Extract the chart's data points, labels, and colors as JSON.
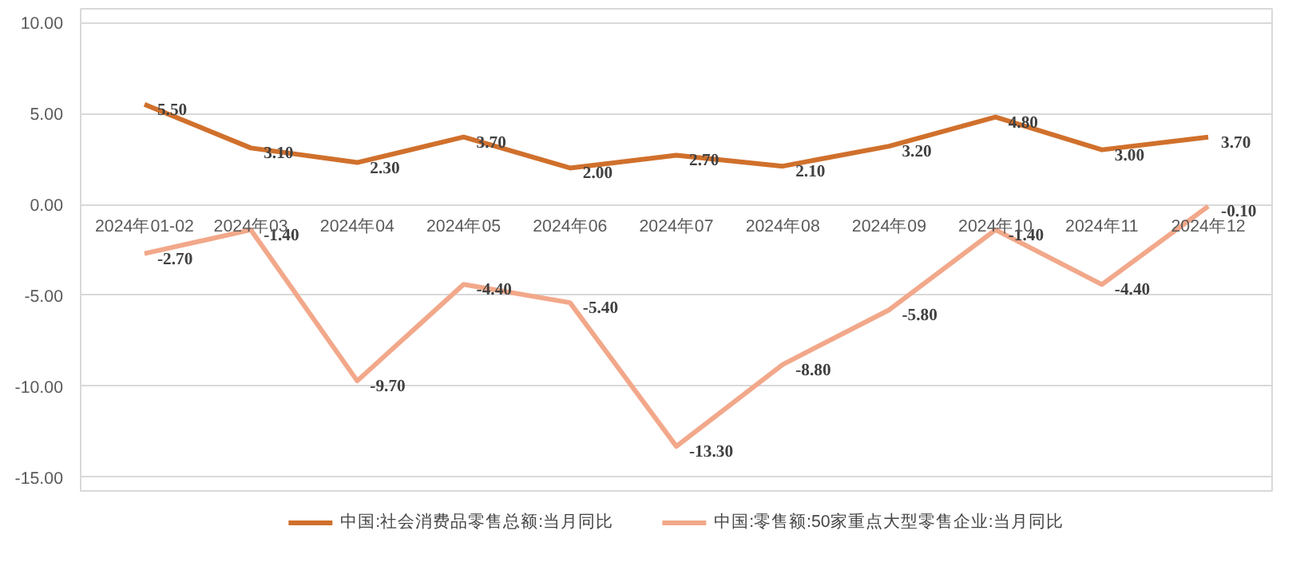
{
  "chart_data": {
    "type": "line",
    "categories": [
      "2024年01-02",
      "2024年03",
      "2024年04",
      "2024年05",
      "2024年06",
      "2024年07",
      "2024年08",
      "2024年09",
      "2024年10",
      "2024年11",
      "2024年12"
    ],
    "series": [
      {
        "name": "中国:社会消费品零售总额:当月同比",
        "color": "#d0702c",
        "values": [
          5.5,
          3.1,
          2.3,
          3.7,
          2.0,
          2.7,
          2.1,
          3.2,
          4.8,
          3.0,
          3.7
        ],
        "value_labels": [
          "5.50",
          "3.10",
          "2.30",
          "3.70",
          "2.00",
          "2.70",
          "2.10",
          "3.20",
          "4.80",
          "3.00",
          "3.70"
        ]
      },
      {
        "name": "中国:零售额:50家重点大型零售企业:当月同比",
        "color": "#f2a88a",
        "values": [
          -2.7,
          -1.4,
          -9.7,
          -4.4,
          -5.4,
          -13.3,
          -8.8,
          -5.8,
          -1.4,
          -4.4,
          -0.1
        ],
        "value_labels": [
          "-2.70",
          "-1.40",
          "-9.70",
          "-4.40",
          "-5.40",
          "-13.30",
          "-8.80",
          "-5.80",
          "-1.40",
          "-4.40",
          "-0.10"
        ]
      }
    ],
    "ylim": [
      -15,
      10
    ],
    "yticks": [
      {
        "value": 10,
        "label": "10.00"
      },
      {
        "value": 5,
        "label": "5.00"
      },
      {
        "value": 0,
        "label": "0.00"
      },
      {
        "value": -5,
        "label": "-5.00"
      },
      {
        "value": -10,
        "label": "-10.00"
      },
      {
        "value": -15,
        "label": "-15.00"
      }
    ],
    "grid": "y",
    "legend": "bottom"
  }
}
